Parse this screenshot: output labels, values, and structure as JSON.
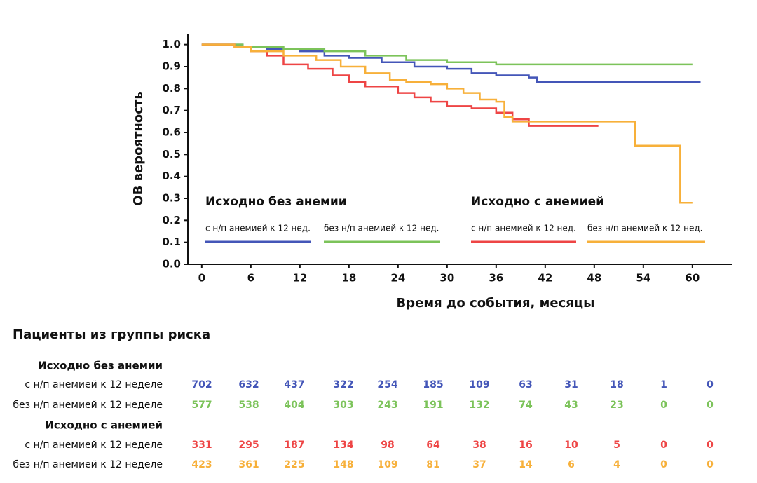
{
  "chart_data": {
    "type": "line",
    "step": true,
    "ylabel": "ОВ вероятность",
    "xlabel": "Время до события, месяцы",
    "xlim": [
      -1.7,
      64.9
    ],
    "ylim": [
      0,
      1.05
    ],
    "xticks": [
      0,
      6,
      12,
      18,
      24,
      30,
      36,
      42,
      48,
      54,
      60
    ],
    "yticks": [
      {
        "value": 0,
        "label": "0.0"
      },
      0.1,
      0.2,
      0.3,
      0.4,
      0.5,
      0.6,
      0.7,
      0.8,
      0.9,
      {
        "value": 1,
        "label": "1.0"
      }
    ],
    "legend_titles": [
      "Исходно без анемии",
      "Исходно с анемией"
    ],
    "series": [
      {
        "name": "с н/п анемией к 12 нед.",
        "color": "#4456b8",
        "x": [
          0,
          3,
          5,
          8,
          12,
          15,
          18,
          22,
          26,
          30,
          33,
          36,
          40,
          41,
          61
        ],
        "values": [
          1,
          1,
          0.99,
          0.98,
          0.97,
          0.95,
          0.94,
          0.92,
          0.9,
          0.89,
          0.87,
          0.86,
          0.85,
          0.83,
          0.83
        ]
      },
      {
        "name": "без н/п анемией к 12 нед.",
        "color": "#7cc35a",
        "x": [
          0,
          5,
          10,
          15,
          20,
          25,
          30,
          36,
          60
        ],
        "values": [
          1,
          0.99,
          0.98,
          0.97,
          0.95,
          0.93,
          0.92,
          0.91,
          0.91
        ]
      },
      {
        "name": "с н/п анемией к 12 нед.",
        "color": "#ee4545",
        "x": [
          0,
          4,
          6,
          8,
          10,
          13,
          16,
          18,
          20,
          24,
          26,
          28,
          30,
          33,
          36,
          38,
          40,
          48.5
        ],
        "values": [
          1,
          0.99,
          0.97,
          0.95,
          0.91,
          0.89,
          0.86,
          0.83,
          0.81,
          0.78,
          0.76,
          0.74,
          0.72,
          0.71,
          0.69,
          0.66,
          0.63,
          0.63
        ]
      },
      {
        "name": "без н/п анемией к 12 нед.",
        "color": "#f7b03a",
        "x": [
          0,
          4,
          6,
          10,
          14,
          17,
          20,
          23,
          25,
          28,
          30,
          32,
          34,
          36,
          37,
          38,
          53,
          58.5,
          60
        ],
        "values": [
          1,
          0.99,
          0.97,
          0.95,
          0.93,
          0.9,
          0.87,
          0.84,
          0.83,
          0.82,
          0.8,
          0.78,
          0.75,
          0.74,
          0.67,
          0.65,
          0.54,
          0.28,
          0.28
        ]
      }
    ]
  },
  "risk_table": {
    "title": "Пациенты из группы риска",
    "groups": [
      {
        "title": "Исходно без анемии",
        "rows": [
          {
            "label": "с н/п анемией к 12 неделе",
            "values": [
              702,
              632,
              437,
              322,
              254,
              185,
              109,
              63,
              31,
              18,
              1,
              0
            ]
          },
          {
            "label": "без н/п анемией к 12 неделе",
            "values": [
              577,
              538,
              404,
              303,
              243,
              191,
              132,
              74,
              43,
              23,
              0,
              0
            ]
          }
        ]
      },
      {
        "title": "Исходно с анемией",
        "rows": [
          {
            "label": "с н/п анемией к 12 неделе",
            "values": [
              331,
              295,
              187,
              134,
              98,
              64,
              38,
              16,
              10,
              5,
              0,
              0
            ]
          },
          {
            "label": "без н/п анемией к 12 неделе",
            "values": [
              423,
              361,
              225,
              148,
              109,
              81,
              37,
              14,
              6,
              4,
              0,
              0
            ]
          }
        ]
      }
    ]
  }
}
